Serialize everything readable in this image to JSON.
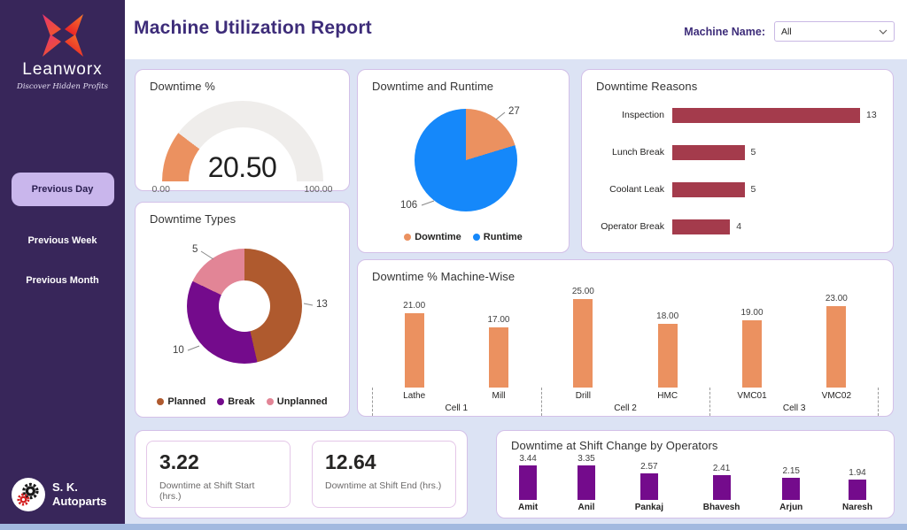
{
  "header": {
    "title": "Machine Utilization Report",
    "machine_name_label": "Machine Name:",
    "machine_name_value": "All"
  },
  "sidebar": {
    "brand": "Leanworx",
    "tagline": "Discover Hidden Profits",
    "nav": [
      {
        "label": "Previous Day",
        "active": true
      },
      {
        "label": "Previous Week",
        "active": false
      },
      {
        "label": "Previous Month",
        "active": false
      }
    ],
    "company_line1": "S. K.",
    "company_line2": "Autoparts"
  },
  "colors": {
    "sidebar_bg": "#38265A",
    "page_bg": "#DCE3F4",
    "card_border": "#D3C0E8",
    "title_purple": "#3D2C79",
    "accent_orange": "#EB9160",
    "accent_blue": "#1588FA",
    "accent_red": "#A43B4C",
    "accent_purple": "#740B8C",
    "accent_sienna": "#AF5A2E",
    "accent_pink": "#E28596"
  },
  "chart_data": [
    {
      "id": "gauge",
      "type": "gauge",
      "title": "Downtime %",
      "value": 20.5,
      "value_label": "20.50",
      "min": 0,
      "max": 100,
      "min_label": "0.00",
      "max_label": "100.00",
      "fill_color": "#EB9160",
      "track_color": "#EFEDEB"
    },
    {
      "id": "pie",
      "type": "pie",
      "title": "Downtime and Runtime",
      "series": [
        {
          "name": "Downtime",
          "value": 27,
          "color": "#EB9160"
        },
        {
          "name": "Runtime",
          "value": 106,
          "color": "#1588FA"
        }
      ],
      "legend_position": "bottom"
    },
    {
      "id": "donut",
      "type": "pie",
      "title": "Downtime Types",
      "series": [
        {
          "name": "Planned",
          "value": 13,
          "color": "#AF5A2E"
        },
        {
          "name": "Break",
          "value": 10,
          "color": "#740B8C"
        },
        {
          "name": "Unplanned",
          "value": 5,
          "color": "#E28596"
        }
      ],
      "legend_position": "bottom"
    },
    {
      "id": "reasons",
      "type": "bar",
      "title": "Downtime Reasons",
      "orientation": "horizontal",
      "categories": [
        "Inspection",
        "Lunch Break",
        "Coolant Leak",
        "Operator Break"
      ],
      "values": [
        13,
        5,
        5,
        4
      ],
      "bar_color": "#A43B4C",
      "xmax": 13
    },
    {
      "id": "machine-wise",
      "type": "bar",
      "title": "Downtime % Machine-Wise",
      "orientation": "vertical",
      "groups": [
        {
          "label": "Cell 1",
          "bars": [
            {
              "name": "Lathe",
              "value": 21,
              "label": "21.00"
            },
            {
              "name": "Mill",
              "value": 17,
              "label": "17.00"
            }
          ]
        },
        {
          "label": "Cell 2",
          "bars": [
            {
              "name": "Drill",
              "value": 25,
              "label": "25.00"
            },
            {
              "name": "HMC",
              "value": 18,
              "label": "18.00"
            }
          ]
        },
        {
          "label": "Cell 3",
          "bars": [
            {
              "name": "VMC01",
              "value": 19,
              "label": "19.00"
            },
            {
              "name": "VMC02",
              "value": 23,
              "label": "23.00"
            }
          ]
        }
      ],
      "bar_color": "#EB9160",
      "ymax": 25
    },
    {
      "id": "kpis",
      "type": "kpi",
      "cards": [
        {
          "value": "3.22",
          "caption": "Downtime at Shift Start (hrs.)"
        },
        {
          "value": "12.64",
          "caption": "Downtime at Shift End (hrs.)"
        }
      ]
    },
    {
      "id": "operators",
      "type": "bar",
      "title": "Downtime at Shift Change by Operators",
      "orientation": "vertical",
      "categories": [
        "Amit",
        "Anil",
        "Pankaj",
        "Bhavesh",
        "Arjun",
        "Naresh"
      ],
      "values": [
        3.44,
        3.35,
        2.57,
        2.41,
        2.15,
        1.94
      ],
      "labels": [
        "3.44",
        "3.35",
        "2.57",
        "2.41",
        "2.15",
        "1.94"
      ],
      "bar_color": "#740B8C",
      "ymax": 3.44
    }
  ]
}
